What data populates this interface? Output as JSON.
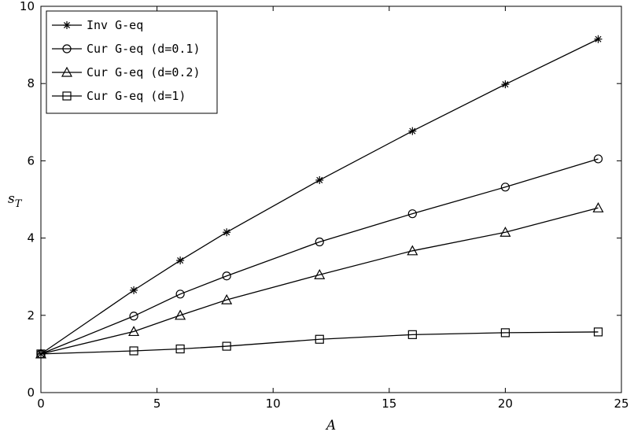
{
  "chart_data": {
    "type": "line",
    "title": "",
    "xlabel": "A",
    "ylabel": "s",
    "ylabel_subscript": "T",
    "xlim": [
      0,
      25
    ],
    "ylim": [
      0,
      10
    ],
    "xticks": [
      0,
      5,
      10,
      15,
      20,
      25
    ],
    "yticks": [
      0,
      2,
      4,
      6,
      8,
      10
    ],
    "grid": false,
    "legend_position": "top-left",
    "x": [
      0,
      4,
      6,
      8,
      12,
      16,
      20,
      24
    ],
    "series": [
      {
        "name": "Inv G-eq",
        "marker": "star",
        "values": [
          1.0,
          2.65,
          3.42,
          4.15,
          5.5,
          6.77,
          7.98,
          9.15
        ]
      },
      {
        "name": "Cur G-eq (d=0.1)",
        "marker": "circle",
        "values": [
          1.0,
          1.98,
          2.55,
          3.02,
          3.9,
          4.63,
          5.32,
          6.05
        ]
      },
      {
        "name": "Cur G-eq (d=0.2)",
        "marker": "triangle",
        "values": [
          1.0,
          1.58,
          2.0,
          2.4,
          3.05,
          3.67,
          4.15,
          4.78
        ]
      },
      {
        "name": "Cur G-eq (d=1)",
        "marker": "square",
        "values": [
          1.0,
          1.08,
          1.13,
          1.2,
          1.38,
          1.5,
          1.55,
          1.57
        ]
      }
    ]
  }
}
